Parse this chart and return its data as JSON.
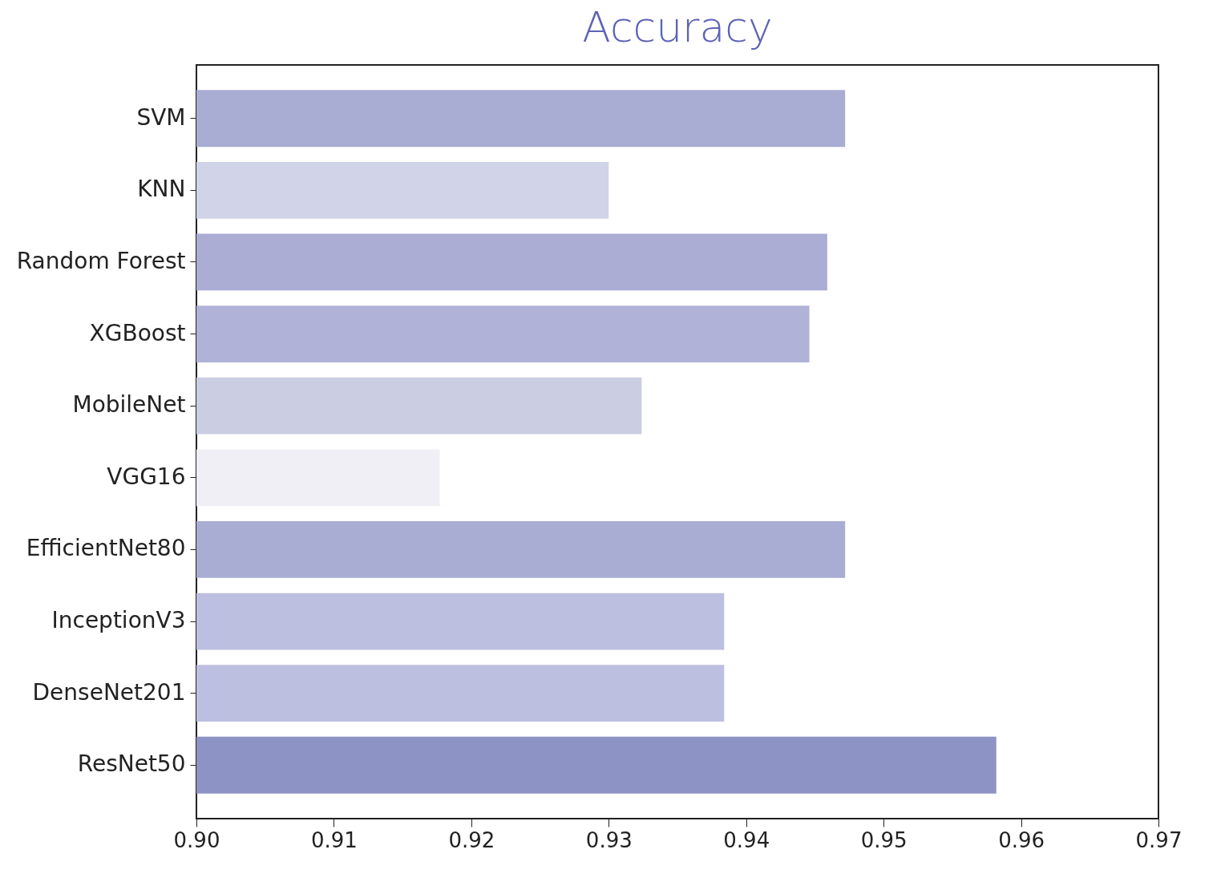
{
  "chart_data": {
    "type": "bar",
    "orientation": "horizontal",
    "title": "Accuracy",
    "categories": [
      "SVM",
      "KNN",
      "Random Forest",
      "XGBoost",
      "MobileNet",
      "VGG16",
      "EfficientNet80",
      "InceptionV3",
      "DenseNet201",
      "ResNet50"
    ],
    "values": [
      0.9472,
      0.93,
      0.9459,
      0.9446,
      0.9324,
      0.9177,
      0.9472,
      0.9384,
      0.9384,
      0.9582
    ],
    "colors": [
      "#a9acd3",
      "#d1d4e8",
      "#abadd5",
      "#b0b2d8",
      "#cbcde3",
      "#efeff5",
      "#a9acd3",
      "#bcbfdf",
      "#bcbfdf",
      "#8e93c6"
    ],
    "xlim": [
      0.9,
      0.97
    ],
    "xticks": [
      {
        "value": 0.9,
        "label": "0.90"
      },
      {
        "value": 0.91,
        "label": "0.91"
      },
      {
        "value": 0.92,
        "label": "0.92"
      },
      {
        "value": 0.93,
        "label": "0.93"
      },
      {
        "value": 0.94,
        "label": "0.94"
      },
      {
        "value": 0.95,
        "label": "0.95"
      },
      {
        "value": 0.96,
        "label": "0.96"
      },
      {
        "value": 0.97,
        "label": "0.97"
      }
    ],
    "grid": false
  }
}
